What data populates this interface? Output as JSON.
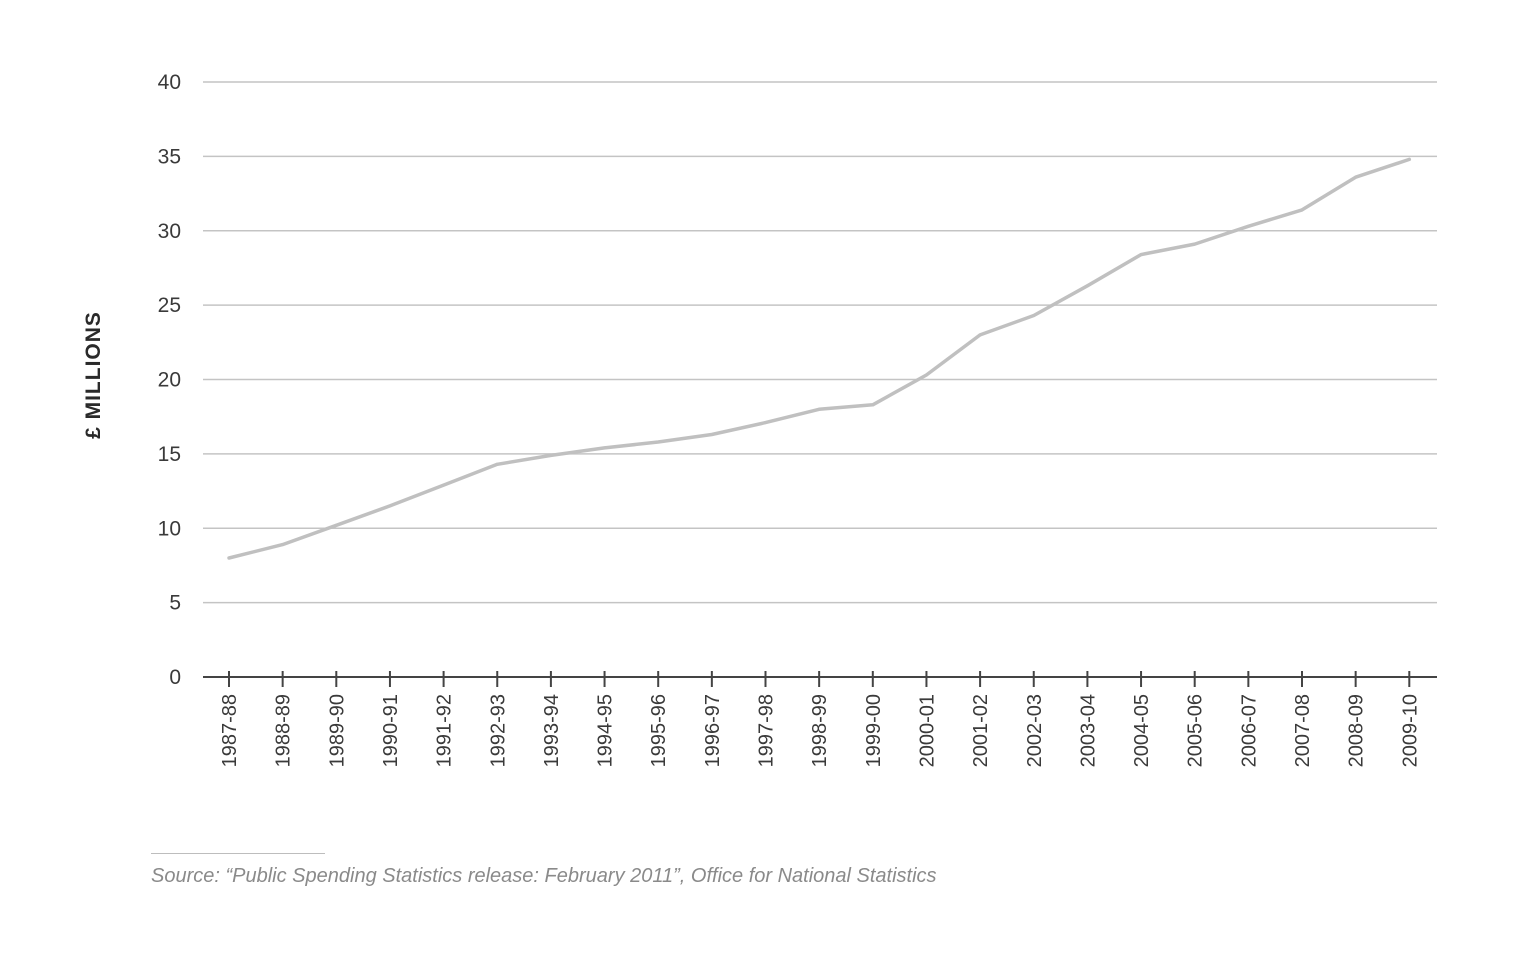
{
  "chart_data": {
    "type": "line",
    "ylabel": "£ MILLIONS",
    "xlabel": "",
    "ylim": [
      0,
      40
    ],
    "yticks": [
      0,
      5,
      10,
      15,
      20,
      25,
      30,
      35,
      40
    ],
    "grid": true,
    "legend": "none",
    "line_color": "#c0c0c0",
    "categories": [
      "1987-88",
      "1988-89",
      "1989-90",
      "1990-91",
      "1991-92",
      "1992-93",
      "1993-94",
      "1994-95",
      "1995-96",
      "1996-97",
      "1997-98",
      "1998-99",
      "1999-00",
      "2000-01",
      "2001-02",
      "2002-03",
      "2003-04",
      "2004-05",
      "2005-06",
      "2006-07",
      "2007-08",
      "2008-09",
      "2009-10"
    ],
    "series": [
      {
        "values": [
          8.0,
          8.9,
          10.2,
          11.5,
          12.9,
          14.3,
          14.9,
          15.4,
          15.8,
          16.3,
          17.1,
          18.0,
          18.3,
          20.3,
          23.0,
          24.3,
          26.3,
          28.4,
          29.1,
          30.3,
          31.4,
          33.6,
          34.8
        ]
      }
    ]
  },
  "source": {
    "text": "Source: “Public Spending Statistics release: February 2011”, Office for National Statistics"
  }
}
